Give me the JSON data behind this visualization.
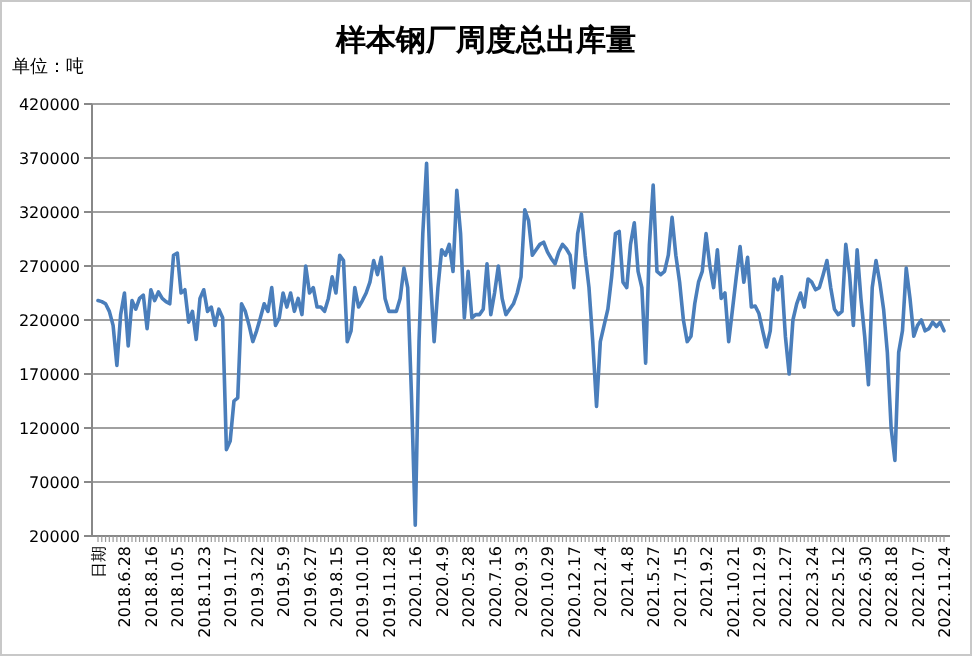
{
  "chart_data": {
    "type": "line",
    "title": "样本钢厂周度总出库量",
    "annotations": [
      "单位：吨"
    ],
    "categories": [
      "日期",
      null,
      null,
      null,
      null,
      null,
      null,
      "2018.6.28",
      null,
      null,
      null,
      null,
      null,
      null,
      "2018.8.16",
      null,
      null,
      null,
      null,
      null,
      null,
      "2018.10.5",
      null,
      null,
      null,
      null,
      null,
      null,
      "2018.11.23",
      null,
      null,
      null,
      null,
      null,
      null,
      "2019.1.17",
      null,
      null,
      null,
      null,
      null,
      null,
      "2019.3.22",
      null,
      null,
      null,
      null,
      null,
      null,
      "2019.5.9",
      null,
      null,
      null,
      null,
      null,
      null,
      "2019.6.27",
      null,
      null,
      null,
      null,
      null,
      null,
      "2019.8.15",
      null,
      null,
      null,
      null,
      null,
      null,
      "2019.10.10",
      null,
      null,
      null,
      null,
      null,
      null,
      "2019.11.28",
      null,
      null,
      null,
      null,
      null,
      null,
      "2020.1.16",
      null,
      null,
      null,
      null,
      null,
      null,
      "2020.4.9",
      null,
      null,
      null,
      null,
      null,
      null,
      "2020.5.28",
      null,
      null,
      null,
      null,
      null,
      null,
      "2020.7.16",
      null,
      null,
      null,
      null,
      null,
      null,
      "2020.9.3",
      null,
      null,
      null,
      null,
      null,
      null,
      "2020.10.29",
      null,
      null,
      null,
      null,
      null,
      null,
      "2020.12.17",
      null,
      null,
      null,
      null,
      null,
      null,
      "2021.2.4",
      null,
      null,
      null,
      null,
      null,
      null,
      "2021.4.8",
      null,
      null,
      null,
      null,
      null,
      null,
      "2021.5.27",
      null,
      null,
      null,
      null,
      null,
      null,
      "2021.7.15",
      null,
      null,
      null,
      null,
      null,
      null,
      "2021.9.2",
      null,
      null,
      null,
      null,
      null,
      null,
      "2021.10.21",
      null,
      null,
      null,
      null,
      null,
      null,
      "2021.12.9",
      null,
      null,
      null,
      null,
      null,
      null,
      "2022.1.27",
      null,
      null,
      null,
      null,
      null,
      null,
      "2022.3.24",
      null,
      null,
      null,
      null,
      null,
      null,
      "2022.5.12",
      null,
      null,
      null,
      null,
      null,
      null,
      "2022.6.30",
      null,
      null,
      null,
      null,
      null,
      null,
      "2022.8.18",
      null,
      null,
      null,
      null,
      null,
      null,
      "2022.10.7",
      null,
      null,
      null,
      null,
      null,
      null,
      "2022.11.24"
    ],
    "series": [
      {
        "color": "#4a7ebb",
        "values": [
          238000,
          237000,
          235000,
          228000,
          215000,
          178000,
          225000,
          245000,
          196000,
          238000,
          230000,
          240000,
          243000,
          212000,
          248000,
          238000,
          246000,
          240000,
          237000,
          235000,
          280000,
          282000,
          245000,
          248000,
          218000,
          228000,
          202000,
          240000,
          248000,
          228000,
          232000,
          215000,
          230000,
          222000,
          100000,
          108000,
          145000,
          148000,
          235000,
          228000,
          215000,
          200000,
          210000,
          222000,
          235000,
          228000,
          250000,
          215000,
          222000,
          245000,
          232000,
          245000,
          228000,
          240000,
          225000,
          270000,
          245000,
          250000,
          232000,
          232000,
          228000,
          240000,
          260000,
          245000,
          280000,
          275000,
          200000,
          210000,
          250000,
          232000,
          238000,
          245000,
          255000,
          275000,
          262000,
          278000,
          240000,
          228000,
          228000,
          228000,
          240000,
          268000,
          250000,
          150000,
          30000,
          200000,
          300000,
          365000,
          260000,
          200000,
          250000,
          285000,
          280000,
          290000,
          265000,
          340000,
          300000,
          222000,
          265000,
          222000,
          225000,
          225000,
          230000,
          272000,
          225000,
          245000,
          270000,
          240000,
          225000,
          230000,
          235000,
          245000,
          260000,
          322000,
          312000,
          280000,
          285000,
          290000,
          292000,
          283000,
          277000,
          272000,
          283000,
          290000,
          286000,
          280000,
          250000,
          300000,
          318000,
          280000,
          250000,
          200000,
          140000,
          200000,
          215000,
          230000,
          260000,
          300000,
          302000,
          255000,
          250000,
          290000,
          310000,
          265000,
          250000,
          180000,
          290000,
          345000,
          265000,
          262000,
          265000,
          280000,
          315000,
          280000,
          255000,
          220000,
          200000,
          205000,
          235000,
          255000,
          265000,
          300000,
          270000,
          250000,
          285000,
          240000,
          245000,
          200000,
          230000,
          260000,
          288000,
          255000,
          278000,
          232000,
          233000,
          226000,
          210000,
          195000,
          210000,
          258000,
          248000,
          260000,
          205000,
          170000,
          220000,
          235000,
          245000,
          232000,
          258000,
          255000,
          248000,
          250000,
          262000,
          275000,
          250000,
          230000,
          225000,
          228000,
          290000,
          262000,
          215000,
          285000,
          240000,
          205000,
          160000,
          250000,
          275000,
          255000,
          230000,
          190000,
          120000,
          90000,
          190000,
          210000,
          268000,
          240000,
          205000,
          215000,
          220000,
          210000,
          212000,
          218000,
          214000,
          218000,
          210000
        ]
      }
    ],
    "ylim": [
      20000,
      420000
    ],
    "yticks": [
      20000,
      70000,
      120000,
      170000,
      220000,
      270000,
      320000,
      370000,
      420000
    ],
    "grid": "y"
  }
}
